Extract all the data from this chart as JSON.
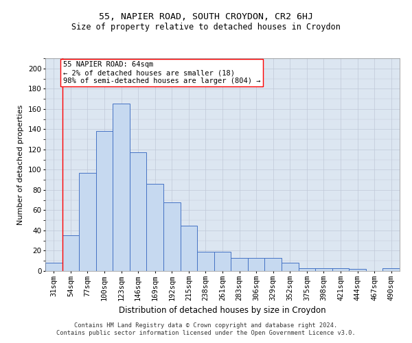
{
  "title1": "55, NAPIER ROAD, SOUTH CROYDON, CR2 6HJ",
  "title2": "Size of property relative to detached houses in Croydon",
  "xlabel": "Distribution of detached houses by size in Croydon",
  "ylabel": "Number of detached properties",
  "footer1": "Contains HM Land Registry data © Crown copyright and database right 2024.",
  "footer2": "Contains public sector information licensed under the Open Government Licence v3.0.",
  "annotation_line1": "55 NAPIER ROAD: 64sqm",
  "annotation_line2": "← 2% of detached houses are smaller (18)",
  "annotation_line3": "98% of semi-detached houses are larger (804) →",
  "bar_values": [
    8,
    35,
    97,
    138,
    165,
    117,
    86,
    68,
    45,
    19,
    19,
    13,
    13,
    13,
    8,
    3,
    3,
    3,
    2,
    0,
    3
  ],
  "bar_labels": [
    "31sqm",
    "54sqm",
    "77sqm",
    "100sqm",
    "123sqm",
    "146sqm",
    "169sqm",
    "192sqm",
    "215sqm",
    "238sqm",
    "261sqm",
    "283sqm",
    "306sqm",
    "329sqm",
    "352sqm",
    "375sqm",
    "398sqm",
    "421sqm",
    "444sqm",
    "467sqm",
    "490sqm"
  ],
  "bar_color": "#c6d9f0",
  "bar_edge_color": "#4472c4",
  "grid_color": "#c0c8d8",
  "background_color": "#dce6f1",
  "ylim": [
    0,
    210
  ],
  "yticks": [
    0,
    20,
    40,
    60,
    80,
    100,
    120,
    140,
    160,
    180,
    200
  ],
  "title1_fontsize": 9.5,
  "title2_fontsize": 8.5,
  "xlabel_fontsize": 8.5,
  "ylabel_fontsize": 8,
  "tick_fontsize": 7.5,
  "footer_fontsize": 6.2,
  "annot_fontsize": 7.5
}
